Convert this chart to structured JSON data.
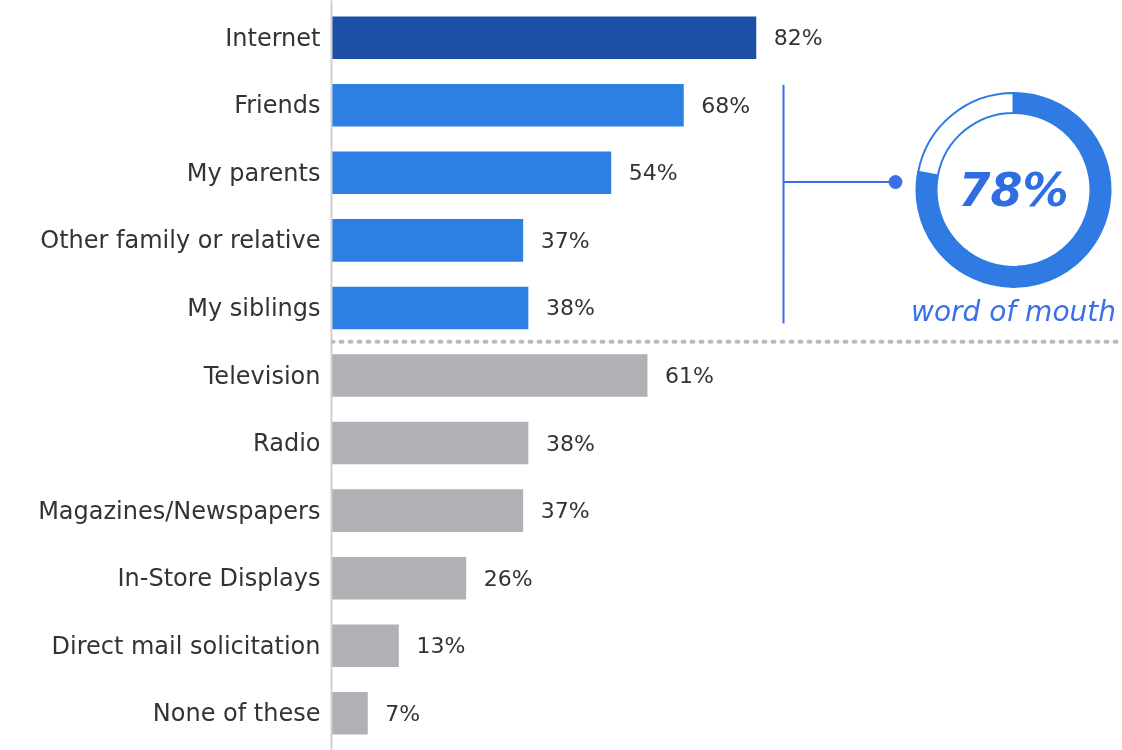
{
  "chart_data": [
    {
      "type": "bar",
      "orientation": "horizontal",
      "categories": [
        "Internet",
        "Friends",
        "My parents",
        "Other family or relative",
        "My siblings",
        "Television",
        "Radio",
        "Magazines/Newspapers",
        "In-Store Displays",
        "Direct mail solicitation",
        "None of these"
      ],
      "values": [
        82,
        68,
        54,
        37,
        38,
        61,
        38,
        37,
        26,
        13,
        7
      ],
      "colors": [
        "#1c4fa6",
        "#2d7fe3",
        "#2d7fe3",
        "#2d7fe3",
        "#2d7fe3",
        "#b0b1b5",
        "#b0b1b5",
        "#b0b1b5",
        "#b0b1b5",
        "#b0b1b5",
        "#b0b1b5"
      ],
      "value_labels": [
        "82%",
        "68%",
        "54%",
        "37%",
        "38%",
        "61%",
        "38%",
        "37%",
        "26%",
        "13%",
        "7%"
      ],
      "tick_labels": "y",
      "grid": false
    },
    {
      "type": "donut",
      "categories": [
        null,
        null
      ],
      "values": [
        78,
        22
      ],
      "colors": [
        "#2f7be3",
        "#ffffff"
      ],
      "value_labels": [
        "78%",
        null
      ],
      "annotations": [
        "word of mouth"
      ]
    }
  ]
}
